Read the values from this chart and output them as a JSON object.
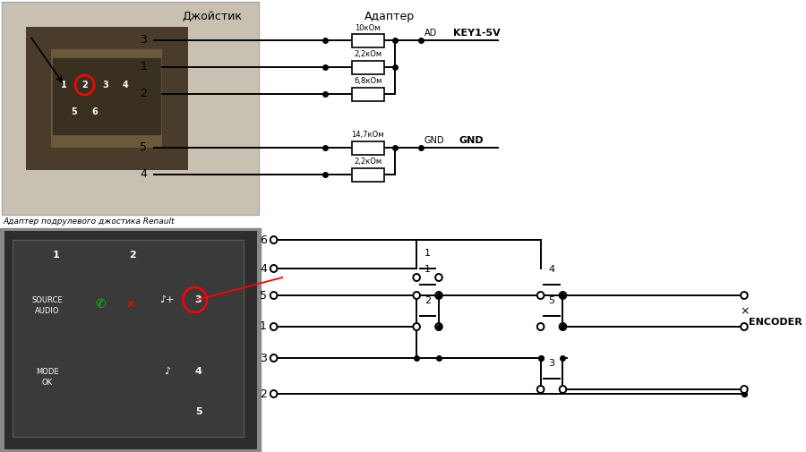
{
  "bg_color": "#ffffff",
  "title_joystick": "Джойстик",
  "title_adapter": "Адаптер",
  "caption": "Адаптер подрулевого джостика Renault",
  "label_AD": "AD",
  "label_KEY": "KEY1-5V",
  "label_GND1": "GND",
  "label_GND2": "GND",
  "label_ENCODER": "ENCODER",
  "res_top": [
    "10кОм",
    "2,2кОм",
    "6,8кОм"
  ],
  "res_bot": [
    "14,7кОм",
    "2,2кОм"
  ],
  "joystick_wires_top": [
    "3",
    "1",
    "2"
  ],
  "joystick_wires_bot": [
    "5",
    "4"
  ],
  "switch_left_labels": [
    "6",
    "4",
    "5",
    "1",
    "3",
    "2"
  ],
  "switch1_label": "1",
  "switch2_label": "2",
  "switch3_label": "3",
  "switch4_label": "4",
  "switch5_label": "5"
}
